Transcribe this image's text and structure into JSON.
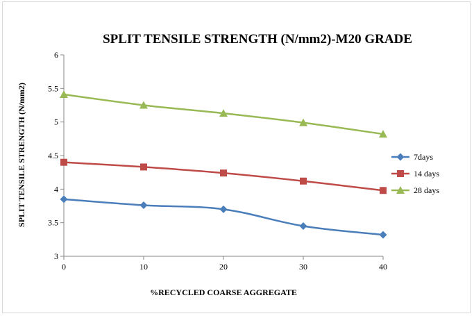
{
  "chart_data": {
    "type": "line",
    "title": "SPLIT  TENSILE  STRENGTH  (N/mm2)-M20 GRADE",
    "xlabel": "%RECYCLED COARSE AGGREGATE",
    "ylabel": "SPLIT TENSILE STRENGTH (N/mm2)",
    "x": [
      0,
      10,
      20,
      30,
      40
    ],
    "x_tick_labels": [
      "0",
      "10",
      "20",
      "30",
      "40"
    ],
    "xlim": [
      0,
      40
    ],
    "ylim": [
      3,
      6
    ],
    "y_ticks": [
      3,
      3.5,
      4,
      4.5,
      5,
      5.5,
      6
    ],
    "y_tick_labels": [
      "3",
      "3.5",
      "4",
      "4.5",
      "5",
      "5.5",
      "6"
    ],
    "grid": false,
    "legend_position": "right",
    "series": [
      {
        "name": "7days",
        "color": "#4a7ebb",
        "marker": "diamond",
        "values": [
          3.85,
          3.76,
          3.7,
          3.45,
          3.32
        ]
      },
      {
        "name": "14 days",
        "color": "#be4b48",
        "marker": "square",
        "values": [
          4.4,
          4.33,
          4.24,
          4.12,
          3.98
        ]
      },
      {
        "name": "28 days",
        "color": "#98b954",
        "marker": "triangle",
        "values": [
          5.41,
          5.25,
          5.13,
          4.99,
          4.82
        ]
      }
    ]
  }
}
